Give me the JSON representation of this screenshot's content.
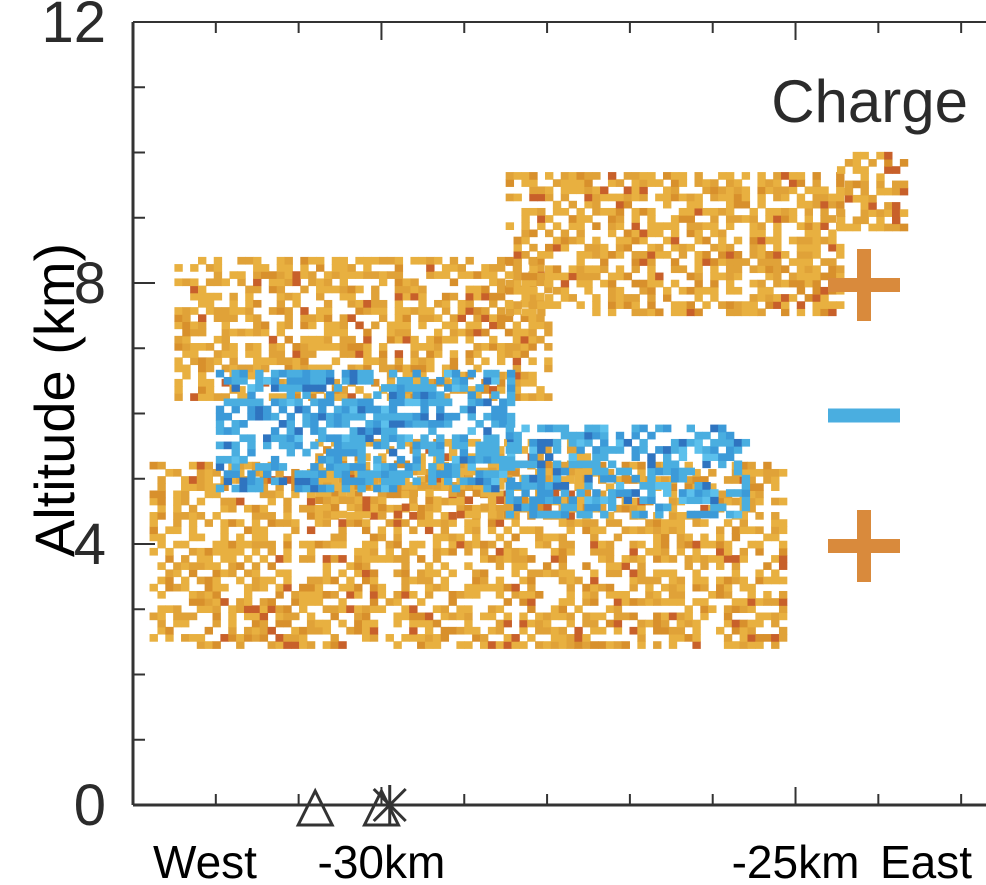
{
  "chart_data": {
    "type": "heatmap",
    "title": "Charge",
    "ylabel": "Altitude (km)",
    "xlabel": "",
    "ylim": [
      0,
      12
    ],
    "xlim": [
      -33,
      -22.7
    ],
    "y_ticks": [
      "0",
      "4",
      "8",
      "12"
    ],
    "x_tick_labels": [
      {
        "label": "West",
        "x": -33
      },
      {
        "label": "-30km",
        "x": -30
      },
      {
        "label": "-25km",
        "x": -25
      },
      {
        "label": "East",
        "x": -22.9
      }
    ],
    "series": [
      {
        "name": "+",
        "color": "#e8b040",
        "regions": [
          {
            "x_range": [
              -32.5,
              -28.0
            ],
            "alt_range": [
              6.2,
              8.4
            ]
          },
          {
            "x_range": [
              -28.5,
              -24.5
            ],
            "alt_range": [
              7.5,
              9.6
            ]
          },
          {
            "x_range": [
              -24.5,
              -23.7
            ],
            "alt_range": [
              8.8,
              9.9
            ]
          },
          {
            "x_range": [
              -32.8,
              -25.2
            ],
            "alt_range": [
              2.4,
              5.2
            ]
          },
          {
            "x_range": [
              -30.8,
              -27.5
            ],
            "alt_range": [
              4.4,
              5.6
            ]
          }
        ]
      },
      {
        "name": "−",
        "color": "#4aaee0",
        "regions": [
          {
            "x_range": [
              -32.0,
              -28.4
            ],
            "alt_range": [
              4.8,
              6.6
            ]
          },
          {
            "x_range": [
              -28.5,
              -25.6
            ],
            "alt_range": [
              4.4,
              5.8
            ]
          }
        ]
      }
    ],
    "legend": [
      {
        "label": "+",
        "color": "#d98a3c",
        "altitude_km": 8
      },
      {
        "label": "−",
        "color": "#4aaee0",
        "altitude_km": 6
      },
      {
        "label": "+",
        "color": "#d98a3c",
        "altitude_km": 4
      }
    ],
    "ground_markers": [
      {
        "symbol": "triangle",
        "x": -30.8
      },
      {
        "symbol": "triangle",
        "x": -30.0
      },
      {
        "symbol": "asterisk",
        "x": -29.9
      }
    ]
  }
}
